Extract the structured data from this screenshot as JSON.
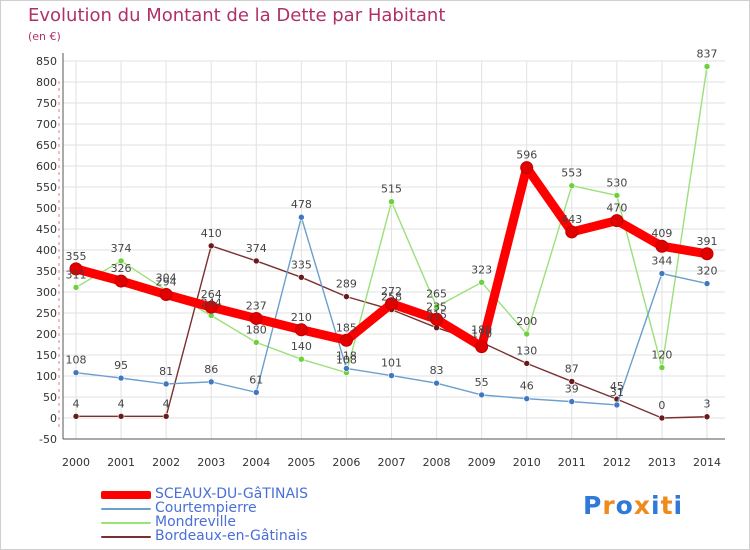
{
  "chart_data": {
    "type": "line",
    "title": "Evolution du Montant de la Dette par Habitant",
    "unit_label": "(en €)",
    "x": [
      "2000",
      "2001",
      "2002",
      "2003",
      "2004",
      "2005",
      "2006",
      "2007",
      "2008",
      "2009",
      "2010",
      "2011",
      "2012",
      "2013",
      "2014"
    ],
    "ylim": [
      -50,
      850
    ],
    "yticks": [
      -50,
      0,
      50,
      100,
      150,
      200,
      250,
      300,
      350,
      400,
      450,
      500,
      550,
      600,
      650,
      700,
      750,
      800,
      850
    ],
    "grid": true,
    "series": [
      {
        "name": "SCEAUX-DU-GâTINAIS",
        "color": "#ff0000",
        "marker_color": "#e00000",
        "values": [
          355,
          326,
          294,
          264,
          237,
          210,
          185,
          272,
          235,
          170,
          596,
          443,
          470,
          409,
          391
        ]
      },
      {
        "name": "Courtempierre",
        "color": "#6a9fcf",
        "marker_color": "#3f78c0",
        "values": [
          108,
          95,
          81,
          86,
          61,
          478,
          118,
          101,
          83,
          55,
          46,
          39,
          31,
          344,
          320
        ]
      },
      {
        "name": "Mondreville",
        "color": "#9be07a",
        "marker_color": "#6cd13a",
        "values": [
          311,
          374,
          304,
          244,
          180,
          140,
          108,
          515,
          265,
          323,
          200,
          553,
          530,
          120,
          837
        ]
      },
      {
        "name": "Bordeaux-en-Gâtinais",
        "color": "#7a3030",
        "marker_color": "#6a1a1a",
        "values": [
          4,
          4,
          4,
          410,
          374,
          335,
          289,
          258,
          215,
          180,
          130,
          87,
          45,
          0,
          3
        ]
      }
    ],
    "data_labels": [
      {
        "series": 0,
        "labels": [
          "355",
          "326",
          "294",
          "264",
          "237",
          "210",
          "185",
          "272",
          "235",
          "170",
          "596",
          "443",
          "470",
          "409",
          "391"
        ]
      },
      {
        "series": 1,
        "labels": [
          "108",
          "95",
          "81",
          "86",
          "61",
          "478",
          "118",
          "101",
          "83",
          "55",
          "46",
          "39",
          "31",
          "344",
          "320"
        ]
      },
      {
        "series": 2,
        "labels": [
          "311",
          "374",
          "304",
          "244",
          "180",
          "140",
          "108",
          "515",
          "265",
          "323",
          "200",
          "553",
          "530",
          "120",
          "837"
        ]
      },
      {
        "series": 3,
        "labels": [
          "4",
          "4",
          "4",
          "410",
          "374",
          "335",
          "289",
          "258",
          "215",
          "180",
          "130",
          "87",
          "45",
          "0",
          "3"
        ]
      }
    ]
  },
  "legend": {
    "items": [
      {
        "label": "SCEAUX-DU-GâTINAIS",
        "color": "#ff0000"
      },
      {
        "label": "Courtempierre",
        "color": "#6a9fcf"
      },
      {
        "label": "Mondreville",
        "color": "#9be07a"
      },
      {
        "label": "Bordeaux-en-Gâtinais",
        "color": "#7a3030"
      }
    ]
  },
  "logo": {
    "text": "Proxiti",
    "colors": [
      "#2f7ad8",
      "#f08a1a",
      "#2f7ad8",
      "#f08a1a",
      "#2f7ad8",
      "#f08a1a",
      "#2f7ad8"
    ]
  }
}
